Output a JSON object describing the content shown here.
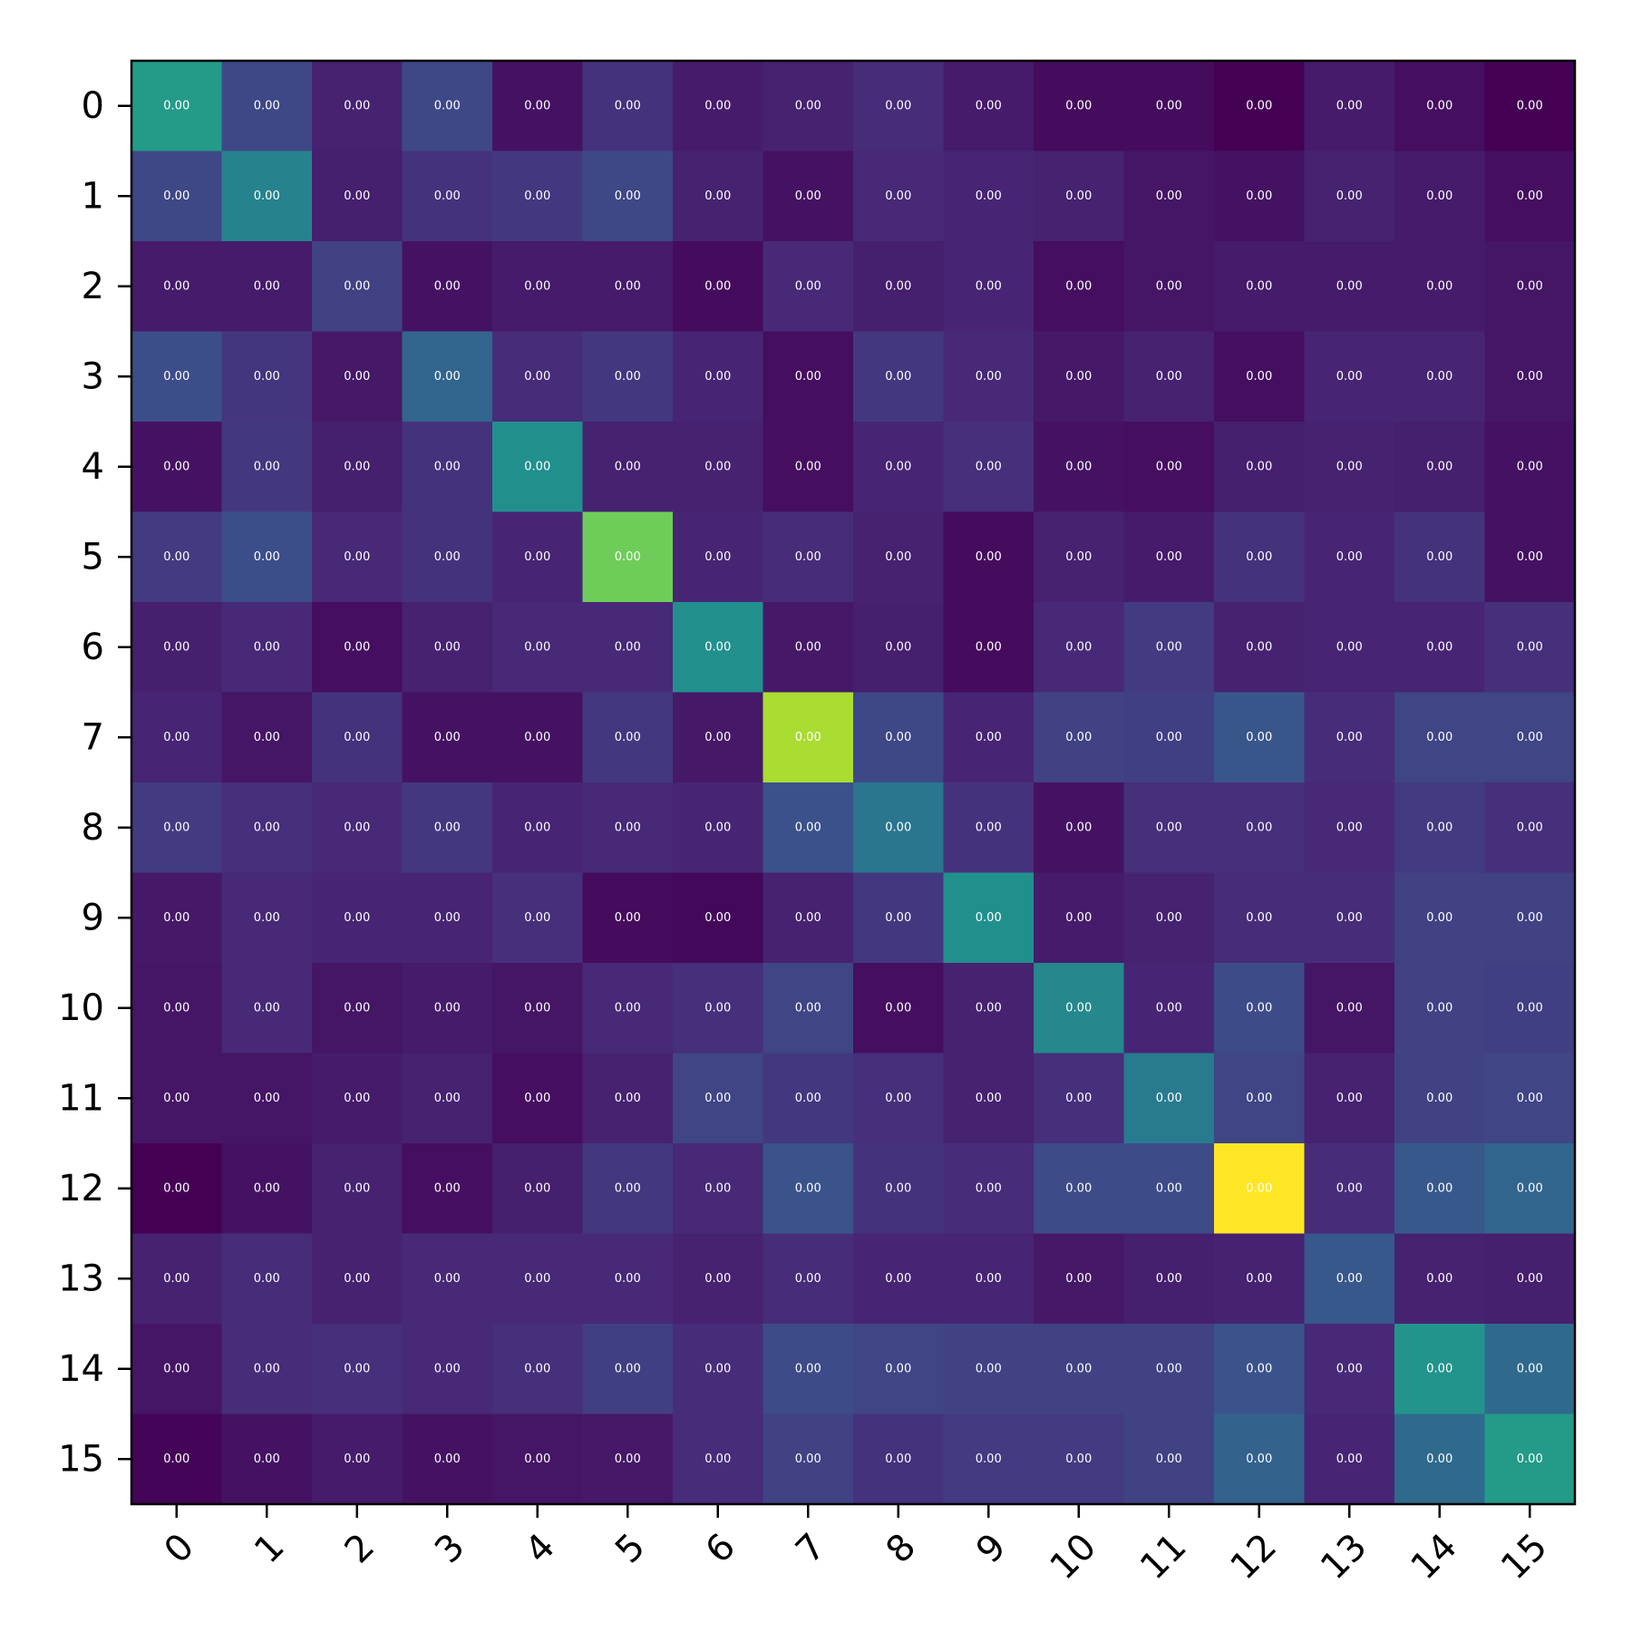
{
  "chart_data": {
    "type": "heatmap",
    "colormap": "viridis",
    "title": "",
    "xlabel": "",
    "ylabel": "",
    "x_labels": [
      "0",
      "1",
      "2",
      "3",
      "4",
      "5",
      "6",
      "7",
      "8",
      "9",
      "10",
      "11",
      "12",
      "13",
      "14",
      "15"
    ],
    "y_labels": [
      "0",
      "1",
      "2",
      "3",
      "4",
      "5",
      "6",
      "7",
      "8",
      "9",
      "10",
      "11",
      "12",
      "13",
      "14",
      "15"
    ],
    "cell_label": "0.00",
    "intensity": [
      [
        0.55,
        0.22,
        0.1,
        0.22,
        0.05,
        0.15,
        0.08,
        0.1,
        0.13,
        0.08,
        0.03,
        0.03,
        0.0,
        0.08,
        0.04,
        0.0
      ],
      [
        0.22,
        0.45,
        0.09,
        0.15,
        0.17,
        0.22,
        0.1,
        0.05,
        0.12,
        0.11,
        0.1,
        0.06,
        0.05,
        0.1,
        0.08,
        0.04
      ],
      [
        0.08,
        0.08,
        0.2,
        0.05,
        0.08,
        0.08,
        0.03,
        0.12,
        0.09,
        0.11,
        0.04,
        0.06,
        0.08,
        0.08,
        0.08,
        0.06
      ],
      [
        0.24,
        0.16,
        0.07,
        0.33,
        0.13,
        0.17,
        0.11,
        0.04,
        0.17,
        0.12,
        0.07,
        0.1,
        0.04,
        0.11,
        0.11,
        0.06
      ],
      [
        0.05,
        0.17,
        0.09,
        0.15,
        0.5,
        0.1,
        0.1,
        0.04,
        0.11,
        0.14,
        0.05,
        0.04,
        0.09,
        0.1,
        0.09,
        0.05
      ],
      [
        0.18,
        0.24,
        0.12,
        0.15,
        0.11,
        0.78,
        0.11,
        0.13,
        0.1,
        0.03,
        0.1,
        0.08,
        0.15,
        0.11,
        0.15,
        0.05
      ],
      [
        0.09,
        0.12,
        0.04,
        0.1,
        0.12,
        0.12,
        0.5,
        0.07,
        0.09,
        0.03,
        0.12,
        0.18,
        0.1,
        0.11,
        0.11,
        0.14
      ],
      [
        0.11,
        0.06,
        0.15,
        0.05,
        0.05,
        0.17,
        0.07,
        0.88,
        0.22,
        0.11,
        0.2,
        0.19,
        0.27,
        0.13,
        0.21,
        0.21
      ],
      [
        0.18,
        0.14,
        0.12,
        0.17,
        0.11,
        0.12,
        0.11,
        0.25,
        0.4,
        0.15,
        0.05,
        0.14,
        0.14,
        0.12,
        0.18,
        0.14
      ],
      [
        0.07,
        0.12,
        0.11,
        0.11,
        0.14,
        0.03,
        0.02,
        0.1,
        0.17,
        0.5,
        0.08,
        0.1,
        0.13,
        0.13,
        0.2,
        0.2
      ],
      [
        0.06,
        0.12,
        0.06,
        0.08,
        0.06,
        0.12,
        0.14,
        0.21,
        0.04,
        0.1,
        0.47,
        0.11,
        0.23,
        0.06,
        0.2,
        0.19
      ],
      [
        0.06,
        0.06,
        0.08,
        0.1,
        0.04,
        0.1,
        0.21,
        0.17,
        0.14,
        0.1,
        0.14,
        0.42,
        0.21,
        0.1,
        0.2,
        0.21
      ],
      [
        0.0,
        0.05,
        0.1,
        0.04,
        0.09,
        0.17,
        0.12,
        0.26,
        0.15,
        0.13,
        0.23,
        0.23,
        1.0,
        0.13,
        0.28,
        0.33
      ],
      [
        0.1,
        0.13,
        0.1,
        0.12,
        0.12,
        0.12,
        0.1,
        0.13,
        0.11,
        0.11,
        0.07,
        0.09,
        0.1,
        0.28,
        0.1,
        0.09
      ],
      [
        0.06,
        0.13,
        0.14,
        0.12,
        0.14,
        0.19,
        0.13,
        0.23,
        0.21,
        0.2,
        0.2,
        0.2,
        0.26,
        0.12,
        0.52,
        0.35
      ],
      [
        0.01,
        0.05,
        0.08,
        0.05,
        0.06,
        0.07,
        0.13,
        0.2,
        0.15,
        0.18,
        0.18,
        0.2,
        0.32,
        0.11,
        0.35,
        0.55
      ]
    ]
  }
}
